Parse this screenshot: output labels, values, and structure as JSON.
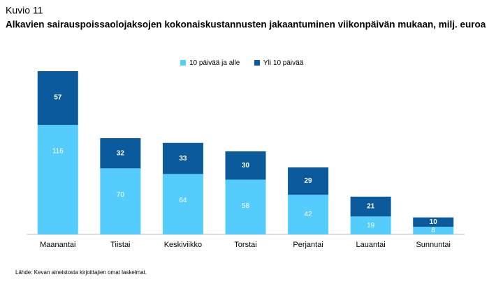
{
  "chart_data": {
    "type": "bar",
    "stacked": true,
    "title": "Kuvio 11",
    "subtitle": "Alkavien sairauspoissaolojaksojen kokonaiskustannusten jakaantuminen viikonpäivän mukaan, milj. euroa",
    "categories": [
      "Maanantai",
      "Tiistai",
      "Keskiviikko",
      "Torstai",
      "Perjantai",
      "Lauantai",
      "Sunnuntai"
    ],
    "series": [
      {
        "name": "10 päivää ja alle",
        "color": "#55cdfc",
        "values": [
          116,
          70,
          64,
          58,
          42,
          19,
          8
        ]
      },
      {
        "name": "Yli 10 päivää",
        "color": "#0b5a9c",
        "values": [
          57,
          32,
          33,
          30,
          29,
          21,
          10
        ]
      }
    ],
    "source": "Lähde: Kevan aineistosta kirjoittajien omat laskelmat."
  }
}
